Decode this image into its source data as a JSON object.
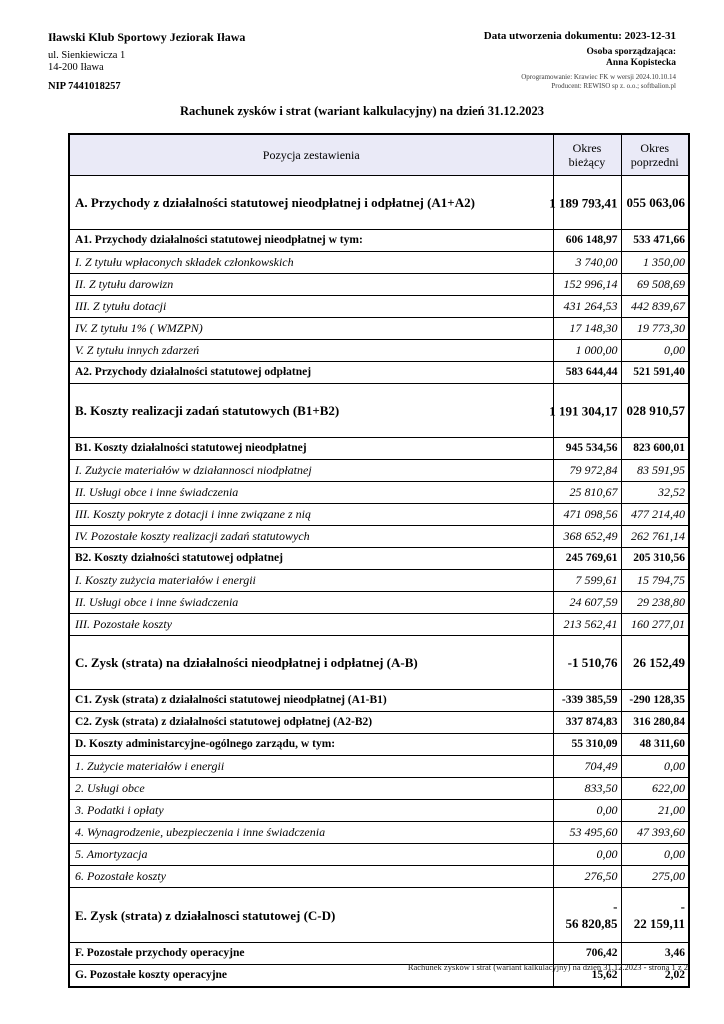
{
  "letterhead": {
    "company": "Iławski Klub Sportowy Jeziorak Iława",
    "address_line1": "ul. Sienkiewicza 1",
    "address_line2": "14-200 Iława",
    "nip": "NIP 7441018257",
    "created": "Data utworzenia dokumentu: 2023-12-31",
    "author_label": "Osoba sporządzająca:",
    "author": "Anna Kopistecka",
    "software_line1": "Oprogramowanie: Krawiec FK w wersji 2024.10.10.14",
    "software_line2": "Producent: REWISO sp z. o.o.; softbalion.pl"
  },
  "title": "Rachunek zysków i strat (wariant kalkulacyjny) na dzień 31.12.2023",
  "table": {
    "header_bg": "#eaeaf7",
    "columns": [
      "Pozycja zestawienia",
      "Okres\nbieżący",
      "Okres\npoprzedni"
    ],
    "rows": [
      {
        "label": "A. Przychody z działalności statutowej nieodpłatnej i odpłatnej (A1+A2)",
        "current": "1 189 793,41",
        "previous": "055 063,06",
        "style": "section",
        "overflow": true
      },
      {
        "label": "A1. Przychody działalności statutowej nieodpłatnej w tym:",
        "current": "606 148,97",
        "previous": "533 471,66",
        "style": "subtotal"
      },
      {
        "label": "I. Z tytułu wpłaconych składek członkowskich",
        "current": "3 740,00",
        "previous": "1 350,00",
        "style": "detail"
      },
      {
        "label": "II. Z tytułu darowizn",
        "current": "152 996,14",
        "previous": "69 508,69",
        "style": "detail"
      },
      {
        "label": "III. Z tytułu dotacji",
        "current": "431 264,53",
        "previous": "442 839,67",
        "style": "detail"
      },
      {
        "label": "IV. Z tytułu 1% ( WMZPN)",
        "current": "17 148,30",
        "previous": "19 773,30",
        "style": "detail"
      },
      {
        "label": "V. Z tytułu innych zdarzeń",
        "current": "1 000,00",
        "previous": "0,00",
        "style": "detail"
      },
      {
        "label": "A2. Przychody działalności statutowej odpłatnej",
        "current": "583 644,44",
        "previous": "521 591,40",
        "style": "subtotal"
      },
      {
        "label": "B. Koszty realizacji zadań statutowych (B1+B2)",
        "current": "1 191 304,17",
        "previous": "028 910,57",
        "style": "section",
        "overflow": true
      },
      {
        "label": "B1. Koszty działalności statutowej nieodpłatnej",
        "current": "945 534,56",
        "previous": "823 600,01",
        "style": "subtotal"
      },
      {
        "label": "I. Zużycie materiałów w działannosci niodpłatnej",
        "current": "79 972,84",
        "previous": "83 591,95",
        "style": "detail"
      },
      {
        "label": "II. Usługi obce i inne świadczenia",
        "current": "25 810,67",
        "previous": "32,52",
        "style": "detail"
      },
      {
        "label": "III. Koszty pokryte z dotacji i inne związane z nią",
        "current": "471 098,56",
        "previous": "477 214,40",
        "style": "detail"
      },
      {
        "label": "IV. Pozostałe koszty realizacji zadań statutowych",
        "current": "368 652,49",
        "previous": "262 761,14",
        "style": "detail"
      },
      {
        "label": "B2. Koszty działności statutowej odpłatnej",
        "current": "245 769,61",
        "previous": "205 310,56",
        "style": "subtotal"
      },
      {
        "label": "I. Koszty zużycia materiałów i energii",
        "current": "7 599,61",
        "previous": "15 794,75",
        "style": "detail"
      },
      {
        "label": "II. Usługi obce i inne świadczenia",
        "current": "24 607,59",
        "previous": "29 238,80",
        "style": "detail"
      },
      {
        "label": "III. Pozostałe koszty",
        "current": "213 562,41",
        "previous": "160 277,01",
        "style": "detail"
      },
      {
        "label": "C. Zysk (strata) na działalności nieodpłatnej i odpłatnej (A-B)",
        "current": "-1 510,76",
        "previous": "26 152,49",
        "style": "section"
      },
      {
        "label": "C1. Zysk (strata) z działalności statutowej nieodpłatnej (A1-B1)",
        "current": "-339 385,59",
        "previous": "-290 128,35",
        "style": "subtotal"
      },
      {
        "label": "C2. Zysk (strata) z działalności statutowej odpłatnej (A2-B2)",
        "current": "337 874,83",
        "previous": "316 280,84",
        "style": "subtotal"
      },
      {
        "label": "D. Koszty administarcyjne-ogólnego zarządu, w tym:",
        "current": "55 310,09",
        "previous": "48 311,60",
        "style": "subtotal"
      },
      {
        "label": "1. Zużycie materiałów i energii",
        "current": "704,49",
        "previous": "0,00",
        "style": "detail"
      },
      {
        "label": "2. Usługi obce",
        "current": "833,50",
        "previous": "622,00",
        "style": "detail"
      },
      {
        "label": "3. Podatki i opłaty",
        "current": "0,00",
        "previous": "21,00",
        "style": "detail"
      },
      {
        "label": "4. Wynagrodzenie, ubezpieczenia i inne świadczenia",
        "current": "53 495,60",
        "previous": "47 393,60",
        "style": "detail"
      },
      {
        "label": "5. Amortyzacja",
        "current": "0,00",
        "previous": "0,00",
        "style": "detail"
      },
      {
        "label": "6. Pozostałe koszty",
        "current": "276,50",
        "previous": "275,00",
        "style": "detail"
      },
      {
        "label": "E. Zysk (strata) z działalnosci statutowej (C-D)",
        "current": "-\n56 820,85",
        "previous": "-\n22 159,11",
        "style": "section",
        "wrap": true
      },
      {
        "label": "F. Pozostałe przychody operacyjne",
        "current": "706,42",
        "previous": "3,46",
        "style": "subtotal"
      },
      {
        "label": "G. Pozostałe koszty operacyjne",
        "current": "15,62",
        "previous": "2,02",
        "style": "subtotal"
      }
    ]
  },
  "footer": "Rachunek zysków i strat (wariant kalkulacyjny) na dzień 31.12.2023 - strona 1 z 2"
}
